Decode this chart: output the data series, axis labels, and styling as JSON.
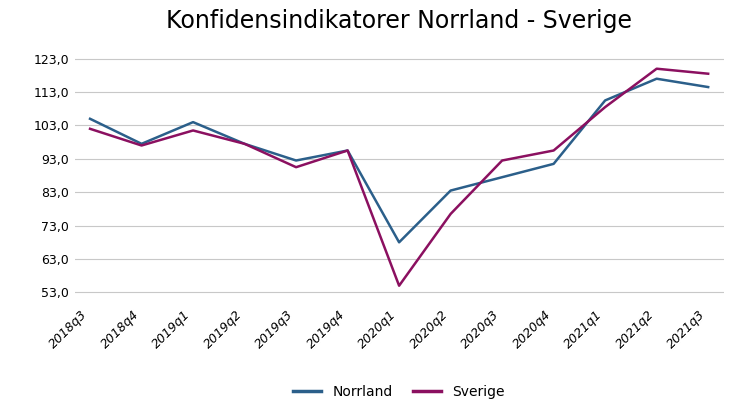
{
  "title": "Konfidensindikatorer Norrland - Sverige",
  "x_labels": [
    "2018q3",
    "2018q4",
    "2019q1",
    "2019q2",
    "2019q3",
    "2019q4",
    "2020q1",
    "2020q2",
    "2020q3",
    "2020q4",
    "2021q1",
    "2021q2",
    "2021q3"
  ],
  "norrland": [
    105.0,
    97.5,
    104.0,
    97.5,
    92.5,
    95.5,
    68.0,
    83.5,
    87.5,
    91.5,
    110.5,
    117.0,
    114.5
  ],
  "sverige": [
    102.0,
    97.0,
    101.5,
    97.5,
    90.5,
    95.5,
    55.0,
    76.5,
    92.5,
    95.5,
    108.5,
    120.0,
    118.5
  ],
  "norrland_color": "#2b5f8a",
  "sverige_color": "#8b1060",
  "yticks": [
    53.0,
    63.0,
    73.0,
    83.0,
    93.0,
    103.0,
    113.0,
    123.0
  ],
  "ylim": [
    50.0,
    128.0
  ],
  "background_color": "#ffffff",
  "plot_bg_color": "#ffffff",
  "grid_color": "#c8c8c8",
  "border_color": "#d0d0d0",
  "legend_labels": [
    "Norrland",
    "Sverige"
  ],
  "title_fontsize": 17,
  "tick_fontsize": 9,
  "legend_fontsize": 10,
  "line_width": 1.8
}
